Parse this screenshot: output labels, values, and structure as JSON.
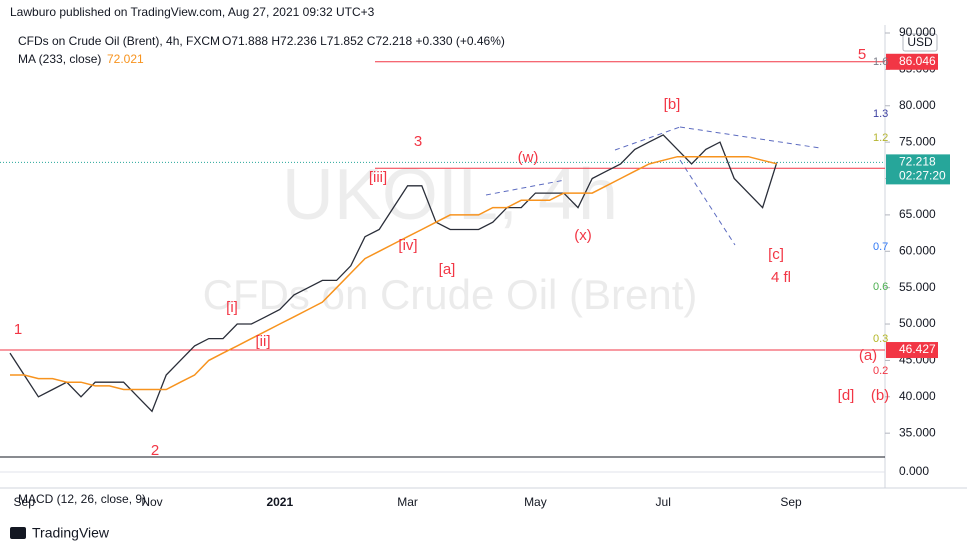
{
  "header": {
    "publisher": "Lawburo published on TradingView.com, Aug 27, 2021 09:32 UTC+3",
    "ohlc": "O71.888 H72.236 L71.852 C72.218 +0.330 (+0.46%)",
    "currency": "USD"
  },
  "watermark": {
    "symbol": "UKOIL, 4h",
    "description": "CFDs on Crude Oil (Brent)"
  },
  "footer": {
    "brand": "TradingView"
  },
  "chart_data": {
    "type": "line",
    "categories": [
      null,
      "Sep",
      null,
      null,
      null,
      null,
      null,
      null,
      null,
      null,
      "Nov",
      null,
      null,
      null,
      null,
      null,
      null,
      null,
      null,
      "2021",
      null,
      null,
      null,
      null,
      null,
      null,
      null,
      null,
      "Mar",
      null,
      null,
      null,
      null,
      null,
      null,
      null,
      null,
      "May",
      null,
      null,
      null,
      null,
      null,
      null,
      null,
      null,
      "Jul",
      null,
      null,
      null,
      null,
      null,
      null,
      null,
      null,
      "Sep",
      null,
      null,
      null,
      null,
      null
    ],
    "series": [
      {
        "name": "CFDs on Crude Oil (Brent), 4h, FXCM",
        "color": "#2a2e39",
        "values": [
          46,
          43,
          40,
          41,
          42,
          40,
          42,
          42,
          42,
          40,
          38,
          43,
          45,
          47,
          48,
          48,
          50,
          50,
          51,
          52,
          54,
          55,
          56,
          56,
          58,
          62,
          63,
          66,
          69,
          69,
          64,
          63,
          63,
          63,
          64,
          66,
          66,
          68,
          68,
          68,
          66,
          70,
          71,
          72,
          74,
          75,
          76,
          74,
          72,
          74,
          75,
          70,
          68,
          66,
          72.218,
          null,
          null,
          null,
          null,
          null,
          null
        ]
      },
      {
        "name": "MA (233, close)",
        "color": "#f7931e",
        "values": [
          43,
          43,
          42.5,
          42.5,
          42,
          42,
          41.5,
          41.5,
          41,
          41,
          41,
          41,
          42,
          43,
          45,
          46,
          47,
          48,
          49,
          50,
          51,
          52,
          53,
          55,
          57,
          59,
          60,
          61,
          62,
          63,
          64,
          65,
          65,
          65,
          66,
          66,
          67,
          67,
          67,
          68,
          68,
          68,
          69,
          70,
          71,
          72,
          72.5,
          73,
          73,
          73,
          73,
          73,
          73,
          72.5,
          72.021,
          null,
          null,
          null,
          null,
          null,
          null
        ]
      }
    ],
    "ylim": [
      32,
      91.1
    ],
    "yticks": [
      {
        "value": 90,
        "label": "90.000"
      },
      {
        "value": 85,
        "label": "85.000"
      },
      {
        "value": 80,
        "label": "80.000"
      },
      {
        "value": 75,
        "label": "75.000"
      },
      {
        "value": 70,
        "label": "70.000"
      },
      {
        "value": 65,
        "label": "65.000"
      },
      {
        "value": 60,
        "label": "60.000"
      },
      {
        "value": 55,
        "label": "55.000"
      },
      {
        "value": 50,
        "label": "50.000"
      },
      {
        "value": 45,
        "label": "45.000"
      },
      {
        "value": 40,
        "label": "40.000"
      },
      {
        "value": 35,
        "label": "35.000"
      }
    ],
    "last_price": {
      "value": 72.218,
      "countdown": "02:27:20",
      "color": "#26a69a"
    },
    "levels": [
      {
        "value": 86.046,
        "color": "#f23645"
      },
      {
        "value": 71.416,
        "color": "#f23645"
      },
      {
        "value": 46.427,
        "color": "#f23645"
      }
    ],
    "annotations": [
      "1",
      "2",
      "3",
      "5",
      "[i]",
      "[ii]",
      "[iii]",
      "[iv]",
      "[a]",
      "[b]",
      "[c]",
      "4 fl",
      "(w)",
      "(x)",
      "(a)",
      "[d]",
      "(b)"
    ],
    "fib_labels": [
      "1.6",
      "1.3",
      "1.2",
      "0.7",
      "0.6",
      "0.3",
      "0.2"
    ],
    "macd": {
      "label": "MACD (12, 26, close, 9)",
      "yticks": [
        {
          "value": 0,
          "label": "0.000"
        }
      ]
    }
  }
}
